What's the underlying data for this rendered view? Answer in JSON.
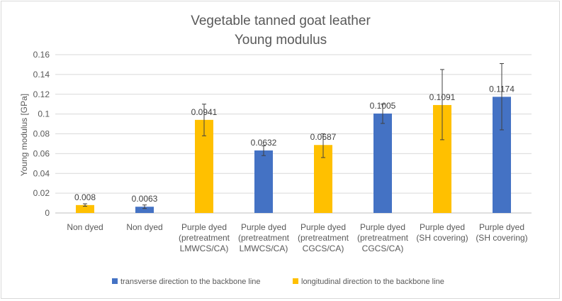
{
  "chart_data": {
    "type": "bar",
    "title": [
      "Vegetable tanned goat leather",
      "Young modulus"
    ],
    "xlabel": "",
    "ylabel": "Young modulus [GPa]",
    "ylim": [
      0,
      0.16
    ],
    "yticks": [
      0,
      0.02,
      0.04,
      0.06,
      0.08,
      0.1,
      0.12,
      0.14,
      0.16
    ],
    "ytick_labels": [
      "0",
      "0.02",
      "0.04",
      "0.06",
      "0.08",
      "0.1",
      "0.12",
      "0.14",
      "0.16"
    ],
    "grid": true,
    "legend_position": "bottom",
    "series_colors": {
      "transverse": "#4472c4",
      "longitudinal": "#ffc000"
    },
    "legend": [
      {
        "key": "transverse",
        "label": "transverse direction to the backbone line"
      },
      {
        "key": "longitudinal",
        "label": "longitudinal direction to the backbone line"
      }
    ],
    "bars": [
      {
        "category": [
          "Non dyed"
        ],
        "series": "longitudinal",
        "value": 0.008,
        "label": "0.008",
        "err_low": 0.0068,
        "err_high": 0.0093
      },
      {
        "category": [
          "Non dyed"
        ],
        "series": "transverse",
        "value": 0.0063,
        "label": "0.0063",
        "err_low": 0.0045,
        "err_high": 0.0081
      },
      {
        "category": [
          "Purple dyed",
          "(pretreatment",
          "LMWCS/CA)"
        ],
        "series": "longitudinal",
        "value": 0.0941,
        "label": "0.0941",
        "err_low": 0.078,
        "err_high": 0.11
      },
      {
        "category": [
          "Purple dyed",
          "(pretreatment",
          "LMWCS/CA)"
        ],
        "series": "transverse",
        "value": 0.0632,
        "label": "0.0632",
        "err_low": 0.058,
        "err_high": 0.068
      },
      {
        "category": [
          "Purple dyed",
          "(pretreatment",
          "CGCS/CA)"
        ],
        "series": "longitudinal",
        "value": 0.0687,
        "label": "0.0687",
        "err_low": 0.056,
        "err_high": 0.08
      },
      {
        "category": [
          "Purple dyed",
          "(pretreatment",
          "CGCS/CA)"
        ],
        "series": "transverse",
        "value": 0.1005,
        "label": "0.1005",
        "err_low": 0.0905,
        "err_high": 0.11
      },
      {
        "category": [
          "Purple dyed",
          "(SH covering)"
        ],
        "series": "longitudinal",
        "value": 0.1091,
        "label": "0.1091",
        "err_low": 0.074,
        "err_high": 0.145
      },
      {
        "category": [
          "Purple dyed",
          "(SH covering)"
        ],
        "series": "transverse",
        "value": 0.1174,
        "label": "0.1174",
        "err_low": 0.084,
        "err_high": 0.151
      }
    ]
  }
}
